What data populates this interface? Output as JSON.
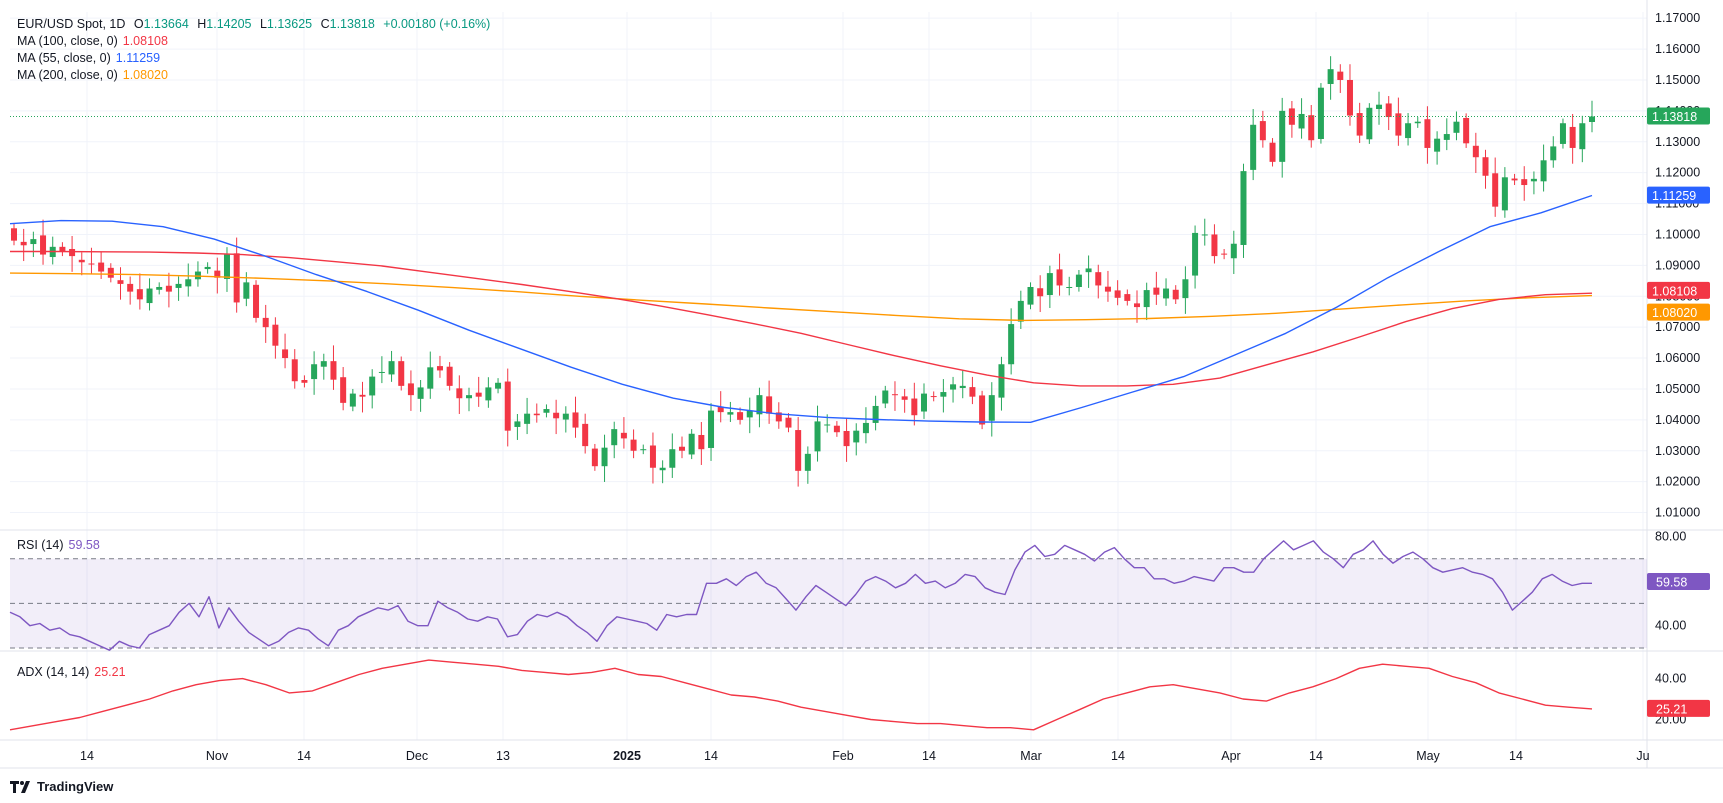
{
  "symbol": {
    "name": "EUR/USD Spot, 1D",
    "o_label": "O",
    "o": "1.13664",
    "h_label": "H",
    "h": "1.14205",
    "l_label": "L",
    "l": "1.13625",
    "c_label": "C",
    "c": "1.13818",
    "change": "+0.00180 (+0.16%)"
  },
  "indicators": [
    {
      "label": "MA (100, close, 0)",
      "value": "1.08108",
      "color": "#f23645"
    },
    {
      "label": "MA (55, close, 0)",
      "value": "1.11259",
      "color": "#2962ff"
    },
    {
      "label": "MA (200, close, 0)",
      "value": "1.08020",
      "color": "#ff9800"
    }
  ],
  "rsi": {
    "label": "RSI (14)",
    "value": "59.58",
    "color": "#7e57c2"
  },
  "adx": {
    "label": "ADX (14, 14)",
    "value": "25.21",
    "color": "#f23645"
  },
  "brand": "TradingView",
  "colors": {
    "up": "#089981",
    "up_body": "#26a65b",
    "down": "#f23645",
    "grid": "#f0f3fa",
    "axis_text": "#131722"
  },
  "chart_data": [
    {
      "type": "candlestick",
      "title": "EUR/USD Spot, 1D",
      "x_ticks": [
        "14",
        "Nov",
        "14",
        "Dec",
        "13",
        "2025",
        "14",
        "Feb",
        "14",
        "Mar",
        "14",
        "Apr",
        "14",
        "May",
        "14",
        "Ju"
      ],
      "y_ticks": [
        "1.17000",
        "1.16000",
        "1.15000",
        "1.14000",
        "1.13000",
        "1.12000",
        "1.11000",
        "1.10000",
        "1.09000",
        "1.08000",
        "1.07000",
        "1.06000",
        "1.05000",
        "1.04000",
        "1.03000",
        "1.02000",
        "1.01000"
      ],
      "ylim": [
        1.005,
        1.172
      ],
      "price_labels": [
        {
          "text": "1.13818",
          "value": 1.13818,
          "color": "#26a65b"
        },
        {
          "text": "1.11259",
          "value": 1.11259,
          "color": "#2962ff"
        },
        {
          "text": "1.08108",
          "value": 1.08108,
          "color": "#f23645"
        },
        {
          "text": "1.08020",
          "value": 1.0802,
          "color": "#ff9800"
        }
      ],
      "candles_close": [
        1.098,
        1.0965,
        1.0985,
        1.0935,
        1.096,
        1.0945,
        1.093,
        1.091,
        1.0905,
        1.088,
        1.086,
        1.084,
        1.0815,
        1.079,
        1.0825,
        1.083,
        1.0815,
        1.084,
        1.0855,
        1.088,
        1.0895,
        1.086,
        1.0935,
        1.078,
        1.0845,
        1.073,
        1.07,
        1.064,
        1.06,
        1.0525,
        1.052,
        1.058,
        1.059,
        1.053,
        1.0455,
        1.0485,
        1.0475,
        1.054,
        1.0555,
        1.059,
        1.051,
        1.048,
        1.0505,
        1.057,
        1.056,
        1.051,
        1.047,
        1.048,
        1.0475,
        1.0505,
        1.052,
        1.0365,
        1.0395,
        1.042,
        1.0415,
        1.0435,
        1.0405,
        1.042,
        1.0375,
        1.0315,
        1.025,
        1.031,
        1.037,
        1.034,
        1.03,
        1.0305,
        1.0245,
        1.0245,
        1.0305,
        1.03,
        1.0355,
        1.0305,
        1.043,
        1.0425,
        1.0425,
        1.04,
        1.043,
        1.048,
        1.042,
        1.0395,
        1.0375,
        1.0235,
        1.029,
        1.0395,
        1.0385,
        1.036,
        1.0315,
        1.0365,
        1.039,
        1.0445,
        1.0495,
        1.048,
        1.0465,
        1.0415,
        1.0485,
        1.0475,
        1.049,
        1.0515,
        1.051,
        1.0475,
        1.0385,
        1.048,
        1.058,
        1.071,
        1.0785,
        1.083,
        1.08,
        1.0875,
        1.0835,
        1.083,
        1.087,
        1.089,
        1.0835,
        1.0815,
        1.0795,
        1.0785,
        1.0765,
        1.082,
        1.0805,
        1.0825,
        1.079,
        1.0855,
        1.1005,
        1.1,
        1.093,
        1.0935,
        1.097,
        1.1205,
        1.1355,
        1.1305,
        1.1235,
        1.14,
        1.1355,
        1.139,
        1.1305,
        1.1475,
        1.1535,
        1.15,
        1.1385,
        1.132,
        1.141,
        1.142,
        1.138,
        1.132,
        1.136,
        1.1365,
        1.128,
        1.131,
        1.1325,
        1.1365,
        1.1295,
        1.125,
        1.119,
        1.109,
        1.1185,
        1.1175,
        1.116,
        1.118,
        1.124,
        1.1285,
        1.136,
        1.128,
        1.136,
        1.13818
      ],
      "ma100": [
        1.0945,
        1.0945,
        1.0944,
        1.0943,
        1.094,
        1.0935,
        1.0925,
        1.0912,
        1.0898,
        1.0878,
        1.0858,
        1.0838,
        1.0816,
        1.0793,
        1.0768,
        1.074,
        1.0711,
        1.068,
        1.0644,
        1.0608,
        1.0575,
        1.0545,
        1.052,
        1.051,
        1.051,
        1.0515,
        1.0535,
        1.0578,
        1.062,
        1.0668,
        1.0718,
        1.076,
        1.079,
        1.0805,
        1.081
      ],
      "ma55": [
        1.1035,
        1.1045,
        1.1043,
        1.1025,
        1.0985,
        1.093,
        1.087,
        1.0815,
        1.0755,
        1.069,
        1.063,
        1.057,
        1.0515,
        1.047,
        1.044,
        1.042,
        1.0408,
        1.0401,
        1.0396,
        1.0393,
        1.0392,
        1.044,
        1.049,
        1.054,
        1.061,
        1.068,
        1.0765,
        1.086,
        1.0945,
        1.1025,
        1.107,
        1.1126
      ],
      "ma200": [
        1.0875,
        1.0873,
        1.087,
        1.0865,
        1.0858,
        1.085,
        1.084,
        1.0828,
        1.0815,
        1.08,
        1.0787,
        1.0775,
        1.0762,
        1.075,
        1.0738,
        1.0727,
        1.0722,
        1.0724,
        1.0728,
        1.0735,
        1.0745,
        1.0758,
        1.0772,
        1.0785,
        1.0795,
        1.0802
      ]
    },
    {
      "type": "line",
      "title": "RSI (14)",
      "y_ticks": [
        "80.00",
        "40.00"
      ],
      "ylim": [
        30,
        82
      ],
      "bands": [
        70,
        50,
        30
      ],
      "values": [
        46,
        44,
        40,
        41,
        38,
        39,
        36,
        35,
        33,
        31,
        29,
        33,
        31,
        30,
        36,
        38,
        40,
        46,
        50,
        44,
        53,
        39,
        48,
        42,
        37,
        34,
        31,
        33,
        37,
        39,
        38,
        34,
        31,
        38,
        40,
        44,
        46,
        48,
        47,
        49,
        42,
        40,
        40,
        51,
        48,
        46,
        43,
        42,
        44,
        43,
        35,
        36,
        42,
        45,
        44,
        46,
        44,
        40,
        37,
        33,
        40,
        44,
        43,
        42,
        41,
        38,
        45,
        44,
        45,
        45,
        59,
        59,
        61,
        58,
        62,
        64,
        59,
        57,
        52,
        47,
        53,
        58,
        55,
        52,
        49,
        54,
        60,
        62,
        60,
        57,
        59,
        63,
        59,
        60,
        57,
        59,
        63,
        62,
        57,
        55,
        54,
        65,
        73,
        76,
        71,
        72,
        76,
        74,
        72,
        69,
        73,
        75,
        70,
        66,
        66,
        61,
        61,
        59,
        60,
        62,
        61,
        60,
        66,
        66,
        64,
        64,
        70,
        74,
        78,
        74,
        76,
        78,
        73,
        70,
        66,
        72,
        74,
        78,
        72,
        68,
        71,
        73,
        70,
        66,
        64,
        65,
        66,
        64,
        63,
        61,
        55,
        47,
        51,
        55,
        61,
        63,
        60,
        58,
        59,
        59
      ],
      "last": "59.58"
    },
    {
      "type": "line",
      "title": "ADX (14, 14)",
      "y_ticks": [
        "40.00",
        "20.00"
      ],
      "ylim": [
        10,
        52
      ],
      "values": [
        15,
        17,
        19,
        21,
        24,
        27,
        30,
        34,
        37,
        39,
        40,
        37,
        33,
        34,
        38,
        42,
        45,
        47,
        49,
        48,
        47,
        46,
        44,
        43,
        42,
        43,
        45,
        42,
        41,
        38,
        35,
        32,
        31,
        29,
        26,
        24,
        22,
        20,
        19,
        18,
        18,
        17,
        16,
        16,
        15,
        20,
        25,
        30,
        33,
        36,
        37,
        35,
        33,
        30,
        29,
        33,
        36,
        40,
        45,
        47,
        46,
        45,
        41,
        38,
        33,
        30,
        27,
        26,
        25.21
      ],
      "last": "25.21"
    }
  ]
}
